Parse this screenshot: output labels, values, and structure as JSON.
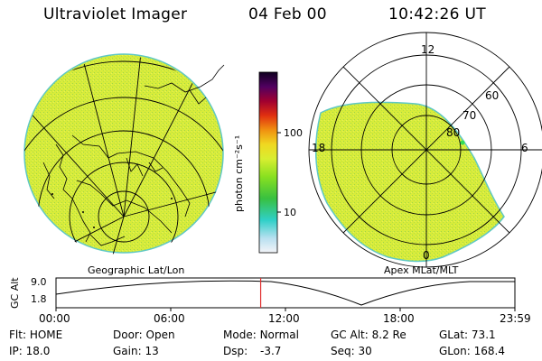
{
  "header": {
    "title": "Ultraviolet Imager",
    "date": "04 Feb 00",
    "time": "10:42:26 UT"
  },
  "colorbar": {
    "unit_label": "photon cm⁻²s⁻¹",
    "ticks": [
      "100",
      "10"
    ]
  },
  "polar_plot": {
    "mlt_labels": [
      "12",
      "18",
      "6",
      "0"
    ],
    "lat_labels": [
      "60",
      "70",
      "80"
    ]
  },
  "panel_labels": {
    "left": "Geographic Lat/Lon",
    "right": "Apex MLat/MLT"
  },
  "altitude_plot": {
    "ylabel": "GC Alt",
    "yticks": [
      "9.0",
      "1.8"
    ],
    "xticks": [
      "00:00",
      "06:00",
      "12:00",
      "18:00",
      "23:59"
    ],
    "current_time_fraction": 0.446
  },
  "info_rows": [
    [
      {
        "label": "Flt:",
        "value": "HOME"
      },
      {
        "label": "Door:",
        "value": "Open"
      },
      {
        "label": "Mode:",
        "value": "Normal"
      },
      {
        "label": "GC Alt:",
        "value": "8.2 Re"
      },
      {
        "label": "GLat:",
        "value": "73.1"
      }
    ],
    [
      {
        "label": "IP:",
        "value": "18.0"
      },
      {
        "label": "Gain:",
        "value": "13"
      },
      {
        "label": "Dsp:",
        "value": "-3.7"
      },
      {
        "label": "Seq:",
        "value": "30"
      },
      {
        "label": "GLon:",
        "value": "168.4"
      }
    ]
  ],
  "colors": {
    "image_fill": "#d8ec3a",
    "image_edge": "#5fc8c4",
    "marker_line": "#e03030",
    "marker_dot": "#33dd55"
  }
}
